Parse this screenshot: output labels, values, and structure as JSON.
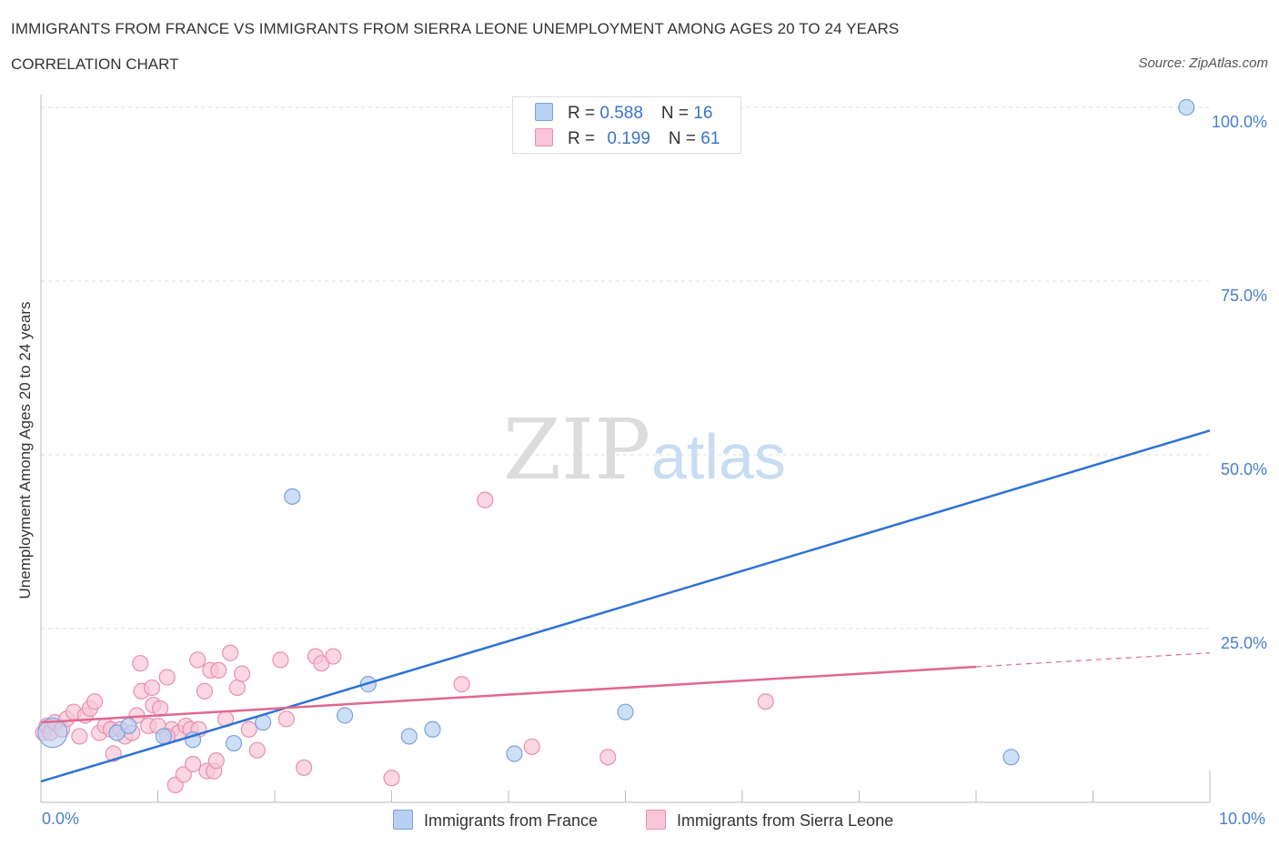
{
  "header": {
    "title": "IMMIGRANTS FROM FRANCE VS IMMIGRANTS FROM SIERRA LEONE UNEMPLOYMENT AMONG AGES 20 TO 24 YEARS",
    "subtitle": "CORRELATION CHART",
    "source": "Source: ZipAtlas.com"
  },
  "watermark": {
    "part1": "ZIP",
    "part2": "atlas"
  },
  "legend": {
    "france": {
      "r_label": "R = ",
      "r_value": "0.588",
      "n_label": "N = ",
      "n_value": "16"
    },
    "sierra": {
      "r_label": "R = ",
      "r_value": "0.199",
      "n_label": "N = ",
      "n_value": "61"
    }
  },
  "colors": {
    "france_fill": "#b8d0f4",
    "france_stroke": "#7aa2dc",
    "france_line": "#2f72d4",
    "sierra_fill": "#f8c6d6",
    "sierra_stroke": "#e890ae",
    "sierra_line": "#e06890",
    "grid": "#dddddd",
    "tick_text": "#4a7fd0"
  },
  "chart_data": {
    "type": "scatter",
    "title": "IMMIGRANTS FROM FRANCE VS IMMIGRANTS FROM SIERRA LEONE UNEMPLOYMENT AMONG AGES 20 TO 24 YEARS",
    "xlabel": "",
    "ylabel": "Unemployment Among Ages 20 to 24 years",
    "xlim": [
      0,
      10
    ],
    "ylim": [
      0,
      100
    ],
    "x_tick_labels": [
      "0.0%",
      "10.0%"
    ],
    "y_tick_labels": [
      "100.0%",
      "75.0%",
      "50.0%",
      "25.0%"
    ],
    "y_ticks": [
      100,
      75,
      50,
      25
    ],
    "grid": true,
    "legend_position": "top-center",
    "series": [
      {
        "name": "Immigrants from France",
        "key": "france",
        "trendline": {
          "x": [
            0,
            10
          ],
          "y": [
            3.0,
            53.5
          ],
          "dashed_from": null
        },
        "points": [
          {
            "x": 0.1,
            "y": 10.0,
            "big": true
          },
          {
            "x": 0.65,
            "y": 10.0
          },
          {
            "x": 0.75,
            "y": 11.0
          },
          {
            "x": 1.05,
            "y": 9.5
          },
          {
            "x": 1.3,
            "y": 9.0
          },
          {
            "x": 1.65,
            "y": 8.5
          },
          {
            "x": 1.9,
            "y": 11.5
          },
          {
            "x": 2.15,
            "y": 44.0
          },
          {
            "x": 2.6,
            "y": 12.5
          },
          {
            "x": 2.8,
            "y": 17.0
          },
          {
            "x": 3.15,
            "y": 9.5
          },
          {
            "x": 3.35,
            "y": 10.5
          },
          {
            "x": 4.05,
            "y": 7.0
          },
          {
            "x": 5.0,
            "y": 13.0
          },
          {
            "x": 8.3,
            "y": 6.5
          },
          {
            "x": 9.8,
            "y": 100.0
          }
        ]
      },
      {
        "name": "Immigrants from Sierra Leone",
        "key": "sierra",
        "trendline": {
          "x": [
            0,
            10
          ],
          "y": [
            11.5,
            21.5
          ],
          "dashed_from": 8.0
        },
        "points": [
          {
            "x": 0.02,
            "y": 10.0
          },
          {
            "x": 0.05,
            "y": 11.0
          },
          {
            "x": 0.08,
            "y": 10.0
          },
          {
            "x": 0.12,
            "y": 11.5
          },
          {
            "x": 0.18,
            "y": 10.5
          },
          {
            "x": 0.22,
            "y": 12.0
          },
          {
            "x": 0.28,
            "y": 13.0
          },
          {
            "x": 0.33,
            "y": 9.5
          },
          {
            "x": 0.38,
            "y": 12.5
          },
          {
            "x": 0.42,
            "y": 13.5
          },
          {
            "x": 0.46,
            "y": 14.5
          },
          {
            "x": 0.5,
            "y": 10.0
          },
          {
            "x": 0.55,
            "y": 11.0
          },
          {
            "x": 0.6,
            "y": 10.5
          },
          {
            "x": 0.62,
            "y": 7.0
          },
          {
            "x": 0.68,
            "y": 10.5
          },
          {
            "x": 0.72,
            "y": 9.5
          },
          {
            "x": 0.78,
            "y": 10.0
          },
          {
            "x": 0.82,
            "y": 12.5
          },
          {
            "x": 0.86,
            "y": 16.0
          },
          {
            "x": 0.92,
            "y": 11.0
          },
          {
            "x": 0.96,
            "y": 14.0
          },
          {
            "x": 1.02,
            "y": 13.5
          },
          {
            "x": 1.08,
            "y": 18.0
          },
          {
            "x": 1.12,
            "y": 10.5
          },
          {
            "x": 1.18,
            "y": 10.0
          },
          {
            "x": 1.24,
            "y": 11.0
          },
          {
            "x": 1.28,
            "y": 10.5
          },
          {
            "x": 1.34,
            "y": 20.5
          },
          {
            "x": 1.4,
            "y": 16.0
          },
          {
            "x": 1.45,
            "y": 19.0
          },
          {
            "x": 1.52,
            "y": 19.0
          },
          {
            "x": 1.58,
            "y": 12.0
          },
          {
            "x": 1.62,
            "y": 21.5
          },
          {
            "x": 1.68,
            "y": 16.5
          },
          {
            "x": 1.72,
            "y": 18.5
          },
          {
            "x": 1.78,
            "y": 10.5
          },
          {
            "x": 1.85,
            "y": 7.5
          },
          {
            "x": 2.05,
            "y": 20.5
          },
          {
            "x": 2.1,
            "y": 12.0
          },
          {
            "x": 2.25,
            "y": 5.0
          },
          {
            "x": 2.35,
            "y": 21.0
          },
          {
            "x": 2.4,
            "y": 20.0
          },
          {
            "x": 2.5,
            "y": 21.0
          },
          {
            "x": 1.08,
            "y": 9.5
          },
          {
            "x": 1.15,
            "y": 2.5
          },
          {
            "x": 1.22,
            "y": 4.0
          },
          {
            "x": 1.3,
            "y": 5.5
          },
          {
            "x": 1.42,
            "y": 4.5
          },
          {
            "x": 1.48,
            "y": 4.5
          },
          {
            "x": 1.5,
            "y": 6.0
          },
          {
            "x": 0.85,
            "y": 20.0
          },
          {
            "x": 0.95,
            "y": 16.5
          },
          {
            "x": 1.0,
            "y": 11.0
          },
          {
            "x": 3.0,
            "y": 3.5
          },
          {
            "x": 3.6,
            "y": 17.0
          },
          {
            "x": 3.8,
            "y": 43.5
          },
          {
            "x": 4.2,
            "y": 8.0
          },
          {
            "x": 4.85,
            "y": 6.5
          },
          {
            "x": 6.2,
            "y": 14.5
          },
          {
            "x": 1.35,
            "y": 10.5
          }
        ]
      }
    ]
  },
  "bottom_legend": {
    "france_label": "Immigrants from France",
    "sierra_label": "Immigrants from Sierra Leone"
  }
}
